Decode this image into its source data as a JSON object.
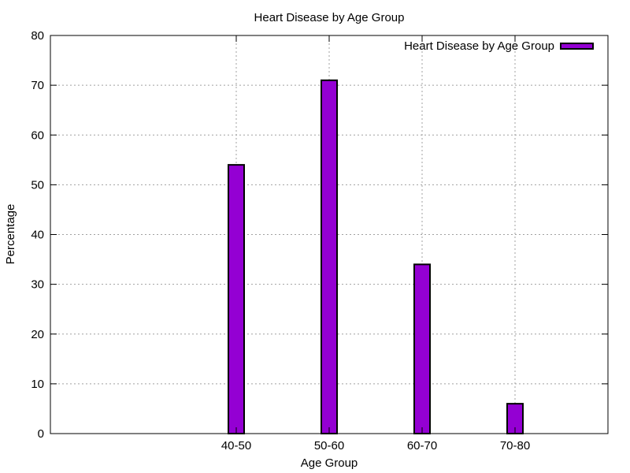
{
  "chart_data": {
    "type": "bar",
    "title": "Heart Disease by Age Group",
    "xlabel": "Age Group",
    "ylabel": "Percentage",
    "categories": [
      "40-50",
      "50-60",
      "60-70",
      "70-80"
    ],
    "series": [
      {
        "name": "Heart Disease by Age Group",
        "values": [
          54,
          71,
          34,
          6
        ],
        "color": "#9400d3"
      }
    ],
    "ylim": [
      0,
      80
    ],
    "yticks": [
      0,
      10,
      20,
      30,
      40,
      50,
      60,
      70,
      80
    ],
    "grid": true,
    "legend": "top-right"
  }
}
